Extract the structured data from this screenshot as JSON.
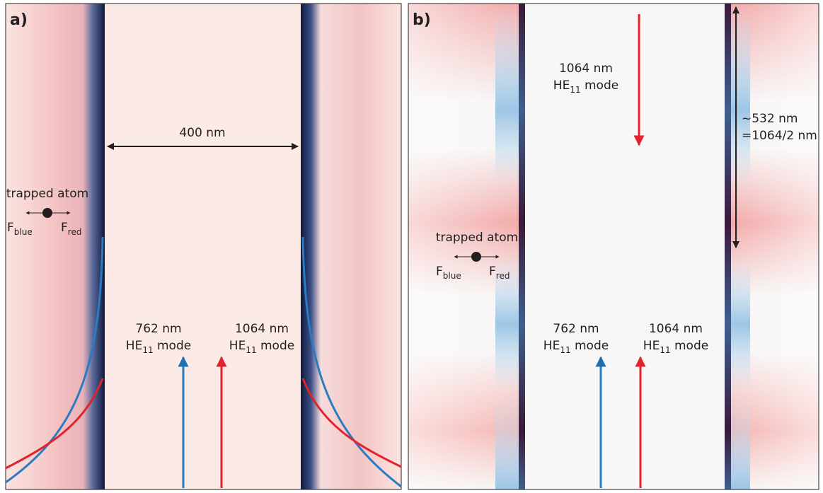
{
  "panels": [
    {
      "label": "a)",
      "separation": "400 nm",
      "atom": {
        "label": "trapped atom",
        "force_left": {
          "symbol": "F",
          "subscript": "blue"
        },
        "force_right": {
          "symbol": "F",
          "subscript": "red"
        }
      },
      "modes": [
        {
          "wavelength": "762 nm",
          "mode": {
            "prefix": "HE",
            "subscript": "11",
            "suffix": " mode"
          }
        },
        {
          "wavelength": "1064 nm",
          "mode": {
            "prefix": "HE",
            "subscript": "11",
            "suffix": " mode"
          }
        }
      ]
    },
    {
      "label": "b)",
      "period": "~532 nm",
      "period_formula": "=1064/2 nm",
      "atom": {
        "label": "trapped atom",
        "force_left": {
          "symbol": "F",
          "subscript": "blue"
        },
        "force_right": {
          "symbol": "F",
          "subscript": "red"
        }
      },
      "reflected_mode": {
        "wavelength": "1064 nm",
        "mode": {
          "prefix": "HE",
          "subscript": "11",
          "suffix": " mode"
        }
      },
      "modes": [
        {
          "wavelength": "762 nm",
          "mode": {
            "prefix": "HE",
            "subscript": "11",
            "suffix": " mode"
          }
        },
        {
          "wavelength": "1064 nm",
          "mode": {
            "prefix": "HE",
            "subscript": "11",
            "suffix": " mode"
          }
        }
      ]
    }
  ]
}
